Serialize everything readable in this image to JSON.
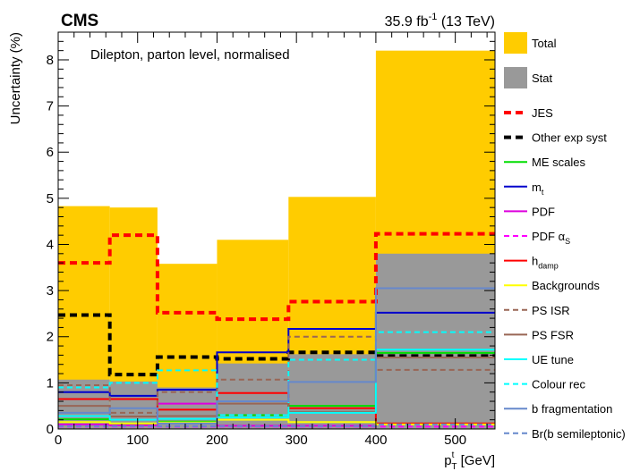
{
  "header": {
    "experiment": "CMS",
    "lumi_value": "35.9 fb",
    "lumi_exp": "-1",
    "energy": " (13 TeV)"
  },
  "plot_label": "Dilepton, parton level, normalised",
  "axes": {
    "ylabel": "Uncertainty (%)",
    "xlabel_main": "p",
    "xlabel_sup": "t",
    "xlabel_sub": "T",
    "xlabel_unit": " [GeV]"
  },
  "chart_data": {
    "type": "bar",
    "bin_edges": [
      0,
      65,
      125,
      200,
      290,
      400,
      550
    ],
    "xlim": [
      0,
      550
    ],
    "ylim": [
      0,
      8.6
    ],
    "x_ticks": [
      0,
      100,
      200,
      300,
      400,
      500
    ],
    "y_ticks": [
      0,
      1,
      2,
      3,
      4,
      5,
      6,
      7,
      8
    ],
    "grid": false,
    "legend_position": "right",
    "filled": [
      {
        "name": "Total",
        "color": "#ffcc00",
        "values": [
          4.83,
          4.8,
          3.58,
          4.1,
          5.03,
          8.2
        ]
      },
      {
        "name": "Stat",
        "color": "#999999",
        "values": [
          1.07,
          1.03,
          0.9,
          1.42,
          1.62,
          3.8
        ]
      }
    ],
    "lines": [
      {
        "name": "JES",
        "color": "#ff0000",
        "width": 4,
        "dash": "8,5",
        "values": [
          3.6,
          4.2,
          2.52,
          2.38,
          2.76,
          4.23
        ]
      },
      {
        "name": "Other exp syst",
        "color": "#000000",
        "width": 4,
        "dash": "8,5",
        "values": [
          2.47,
          1.18,
          1.56,
          1.52,
          1.66,
          1.58
        ]
      },
      {
        "name": "ME scales",
        "color": "#00dd00",
        "width": 2,
        "dash": "",
        "values": [
          0.21,
          0.1,
          0.16,
          0.3,
          0.5,
          1.65
        ]
      },
      {
        "name": "m_t",
        "color": "#0000cc",
        "width": 2,
        "dash": "",
        "values": [
          0.8,
          0.72,
          0.85,
          1.66,
          2.17,
          2.52
        ]
      },
      {
        "name": "PDF",
        "color": "#dd00dd",
        "width": 2,
        "dash": "",
        "values": [
          0.1,
          0.08,
          0.55,
          0.07,
          0.07,
          0.1
        ]
      },
      {
        "name": "PDF alpha_S",
        "color": "#ff00ff",
        "width": 2,
        "dash": "6,4",
        "values": [
          0.05,
          0.05,
          0.05,
          0.05,
          0.05,
          0.05
        ]
      },
      {
        "name": "h_damp",
        "color": "#ff0000",
        "width": 2,
        "dash": "",
        "values": [
          0.65,
          0.65,
          0.42,
          0.78,
          0.45,
          0.12
        ]
      },
      {
        "name": "Backgrounds",
        "color": "#ffff00",
        "width": 2,
        "dash": "",
        "values": [
          0.15,
          0.12,
          0.14,
          0.2,
          0.15,
          0.1
        ]
      },
      {
        "name": "PS ISR",
        "color": "#996655",
        "width": 2,
        "dash": "6,4",
        "values": [
          0.95,
          0.35,
          0.8,
          1.07,
          2.0,
          1.28
        ]
      },
      {
        "name": "PS FSR",
        "color": "#996655",
        "width": 2,
        "dash": "",
        "values": [
          0.5,
          0.27,
          0.28,
          0.55,
          0.37,
          1.55
        ]
      },
      {
        "name": "UE tune",
        "color": "#00ffff",
        "width": 2,
        "dash": "",
        "values": [
          0.28,
          0.2,
          0.22,
          0.25,
          0.35,
          1.72
        ]
      },
      {
        "name": "Colour rec",
        "color": "#00ffff",
        "width": 2,
        "dash": "6,4",
        "values": [
          0.9,
          1.0,
          1.27,
          0.3,
          1.5,
          2.1
        ]
      },
      {
        "name": "b fragmentation",
        "color": "#6688cc",
        "width": 2,
        "dash": "",
        "values": [
          0.35,
          0.45,
          0.12,
          0.6,
          1.02,
          3.05
        ]
      },
      {
        "name": "Br(b semileptonic)",
        "color": "#6688cc",
        "width": 2,
        "dash": "6,4",
        "values": [
          0.06,
          0.06,
          0.06,
          0.06,
          0.06,
          0.1
        ]
      }
    ]
  },
  "legend": [
    {
      "key": "total",
      "kind": "box",
      "color": "#ffcc00",
      "label": "Total"
    },
    {
      "key": "stat",
      "kind": "box",
      "color": "#999999",
      "label": "Stat"
    },
    {
      "key": "jes",
      "kind": "line",
      "color": "#ff0000",
      "width": 4,
      "dash": "8,5",
      "label": "JES"
    },
    {
      "key": "other-exp-syst",
      "kind": "line",
      "color": "#000000",
      "width": 4,
      "dash": "8,5",
      "label": "Other exp syst"
    },
    {
      "key": "me-scales",
      "kind": "line",
      "color": "#00dd00",
      "width": 2,
      "dash": "",
      "label": "ME scales"
    },
    {
      "key": "mt",
      "kind": "line",
      "color": "#0000cc",
      "width": 2,
      "dash": "",
      "label": "m",
      "sub": "t"
    },
    {
      "key": "pdf",
      "kind": "line",
      "color": "#dd00dd",
      "width": 2,
      "dash": "",
      "label": "PDF"
    },
    {
      "key": "pdf-alphas",
      "kind": "line",
      "color": "#ff00ff",
      "width": 2,
      "dash": "6,4",
      "label": "PDF α",
      "sub": "S"
    },
    {
      "key": "hdamp",
      "kind": "line",
      "color": "#ff0000",
      "width": 2,
      "dash": "",
      "label": "h",
      "sub": "damp"
    },
    {
      "key": "backgrounds",
      "kind": "line",
      "color": "#ffff00",
      "width": 2,
      "dash": "",
      "label": "Backgrounds"
    },
    {
      "key": "ps-isr",
      "kind": "line",
      "color": "#996655",
      "width": 2,
      "dash": "6,4",
      "label": "PS ISR"
    },
    {
      "key": "ps-fsr",
      "kind": "line",
      "color": "#996655",
      "width": 2,
      "dash": "",
      "label": "PS FSR"
    },
    {
      "key": "ue-tune",
      "kind": "line",
      "color": "#00ffff",
      "width": 2,
      "dash": "",
      "label": "UE tune"
    },
    {
      "key": "colour-rec",
      "kind": "line",
      "color": "#00ffff",
      "width": 2,
      "dash": "6,4",
      "label": "Colour rec"
    },
    {
      "key": "b-fragmentation",
      "kind": "line",
      "color": "#6688cc",
      "width": 2,
      "dash": "",
      "label": "b fragmentation"
    },
    {
      "key": "br-b-semileptonic",
      "kind": "line",
      "color": "#6688cc",
      "width": 2,
      "dash": "6,4",
      "label": "Br(b semileptonic)"
    }
  ]
}
